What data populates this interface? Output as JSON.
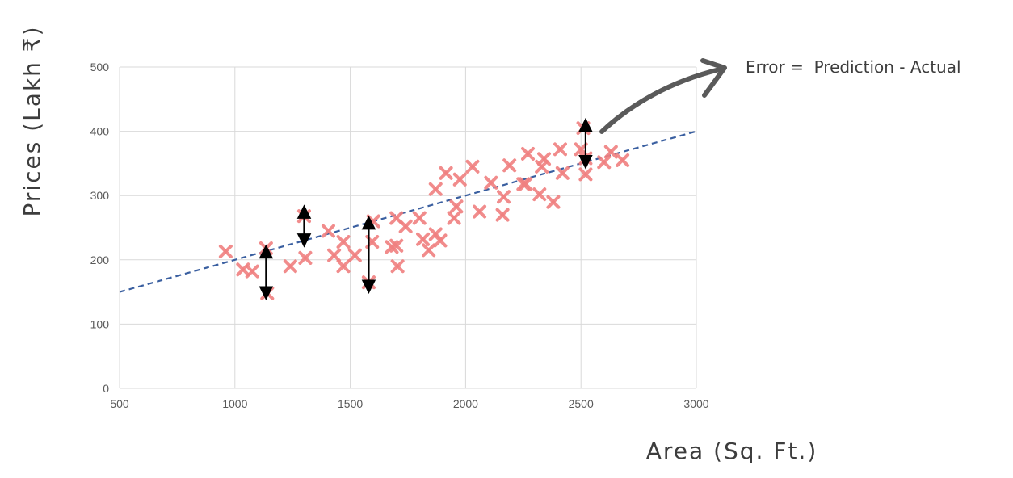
{
  "chart_data": {
    "type": "scatter",
    "xlabel": "Area (Sq. Ft.)",
    "ylabel": "Prices (Lakh ₹)",
    "xlim": [
      500,
      3000
    ],
    "ylim": [
      0,
      500
    ],
    "x_ticks": [
      500,
      1000,
      1500,
      2000,
      2500,
      3000
    ],
    "y_ticks": [
      0,
      100,
      200,
      300,
      400,
      500
    ],
    "grid": true,
    "marker": "x",
    "colors": {
      "points": "#f08080",
      "fit_line": "#3a5fa0",
      "arrows": "#000000",
      "annotation": "#5a5a5a",
      "grid": "#d9d9d9"
    },
    "series": [
      {
        "x": [
          960,
          1035,
          1075,
          1135,
          1140,
          1240,
          1300,
          1305,
          1405,
          1430,
          1470,
          1470,
          1520,
          1580,
          1595,
          1600,
          1680,
          1700,
          1700,
          1705,
          1740,
          1800,
          1815,
          1840,
          1870,
          1870,
          1890,
          1915,
          1950,
          1960,
          1975,
          2030,
          2060,
          2110,
          2160,
          2165,
          2190,
          2250,
          2260,
          2270,
          2320,
          2330,
          2340,
          2380,
          2410,
          2420,
          2500,
          2510,
          2520,
          2520,
          2600,
          2630,
          2680
        ],
        "y": [
          213,
          185,
          182,
          218,
          148,
          190,
          268,
          203,
          245,
          207,
          228,
          190,
          207,
          165,
          228,
          260,
          220,
          265,
          222,
          190,
          252,
          265,
          232,
          215,
          240,
          310,
          230,
          335,
          265,
          283,
          325,
          345,
          275,
          320,
          270,
          298,
          347,
          318,
          318,
          365,
          302,
          345,
          357,
          290,
          372,
          335,
          372,
          405,
          358,
          333,
          352,
          368,
          355
        ]
      }
    ],
    "fit_line": {
      "x": [
        500,
        3000
      ],
      "y": [
        150,
        400
      ]
    },
    "error_arrows": [
      {
        "x": 1135,
        "y_from": 148,
        "y_to": 213
      },
      {
        "x": 1300,
        "y_from": 230,
        "y_to": 275
      },
      {
        "x": 1580,
        "y_from": 158,
        "y_to": 258
      },
      {
        "x": 2520,
        "y_from": 352,
        "y_to": 410
      }
    ],
    "annotation": "Error =  Prediction - Actual"
  }
}
